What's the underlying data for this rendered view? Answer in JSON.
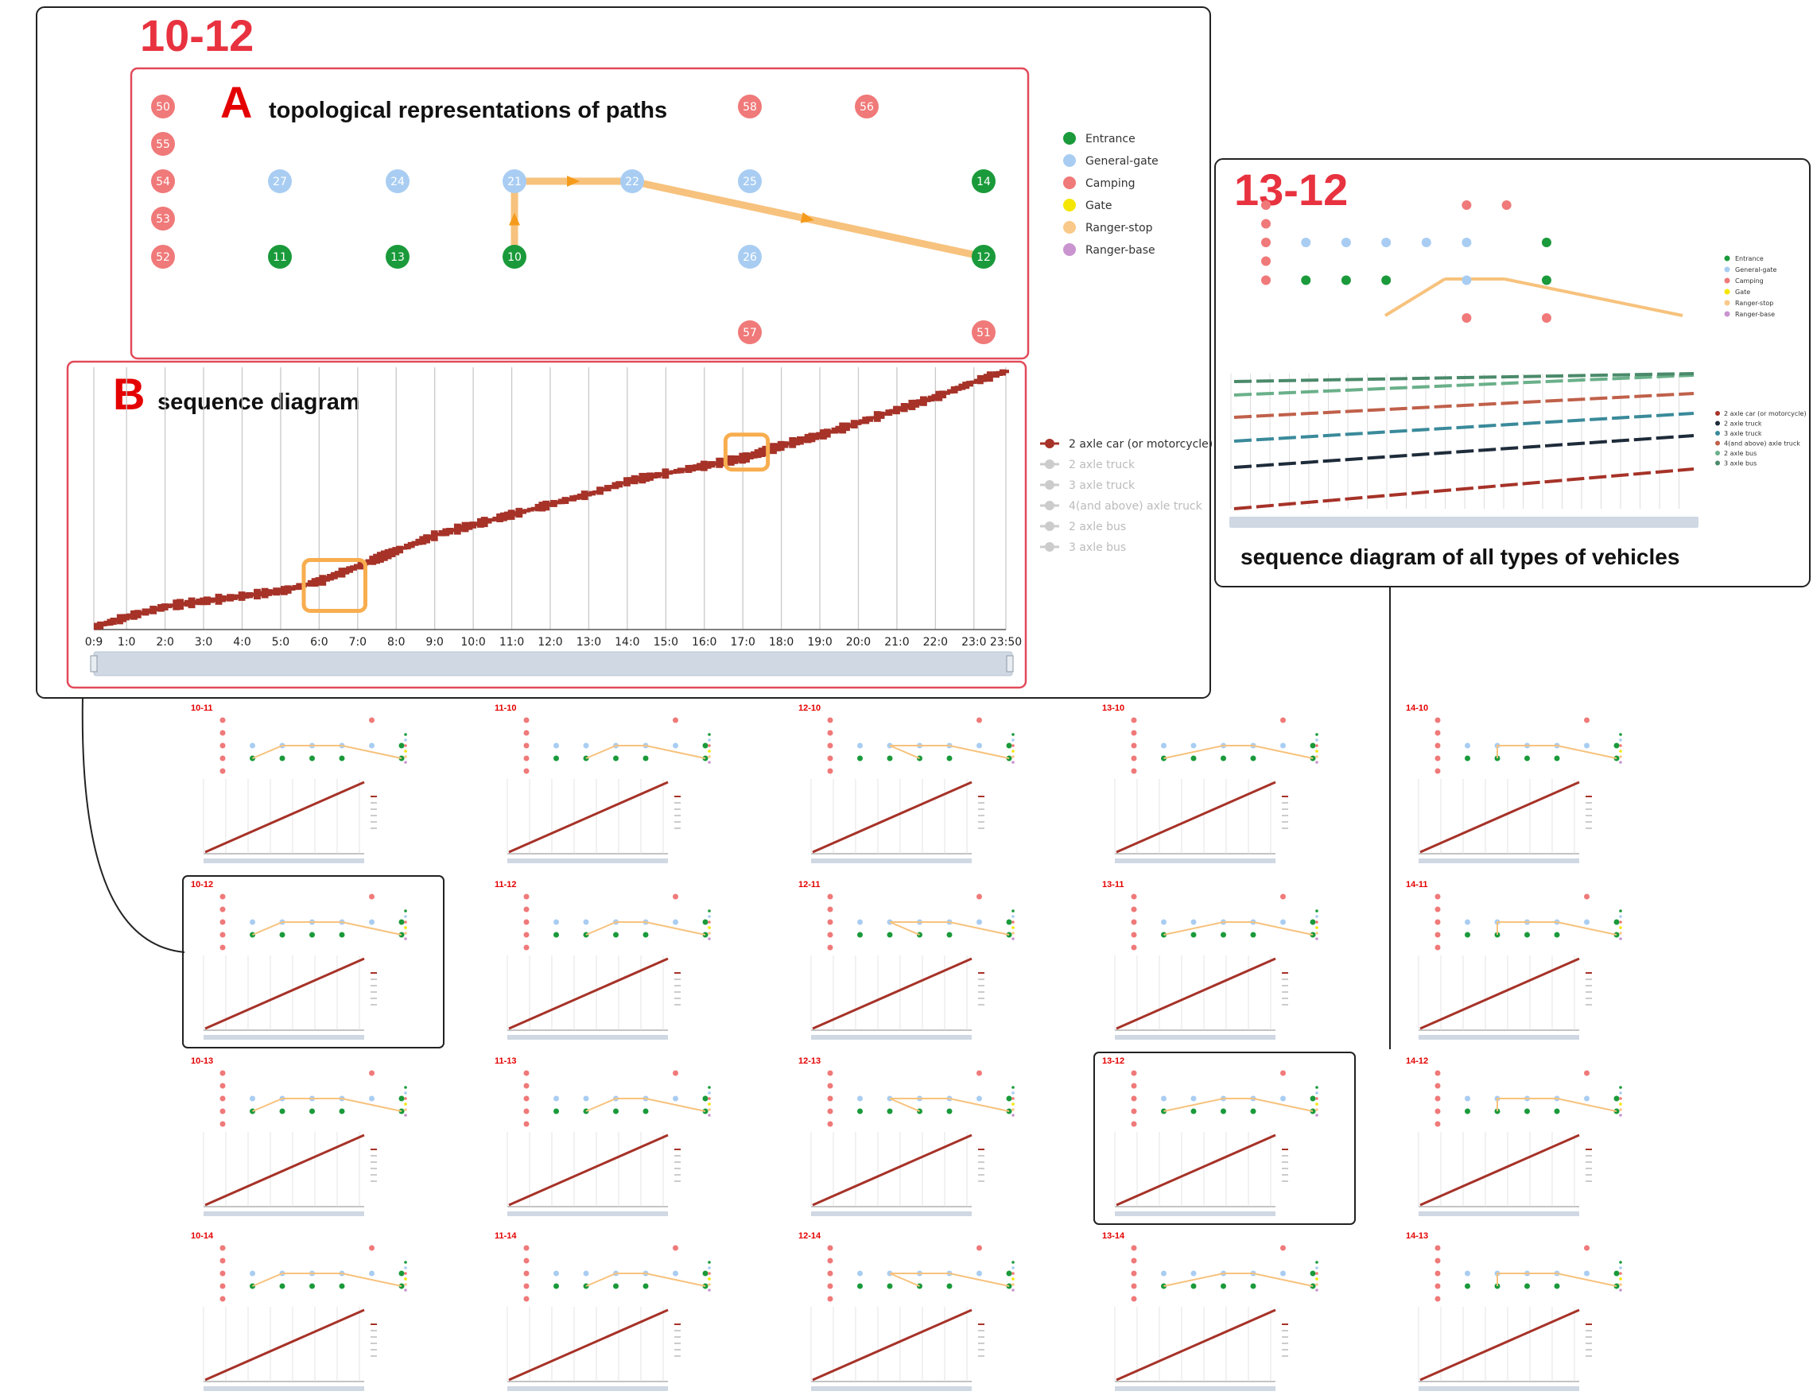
{
  "main_panel": {
    "title": "10-12",
    "section_a": {
      "letter": "A",
      "label": "topological representations of paths"
    },
    "section_b": {
      "letter": "B",
      "label": "sequence diagram"
    }
  },
  "side_panel": {
    "title": "13-12",
    "caption": "sequence diagram of all types of vehicles"
  },
  "colors": {
    "entrance": "#1a9a3a",
    "general_gate": "#a9cdf2",
    "camping": "#f07979",
    "gate": "#f5e600",
    "ranger_stop": "#f9c98a",
    "ranger_base": "#c994cf",
    "path": "#f7c27d",
    "path_arrow": "#f59b1c",
    "sequence": "#a63228",
    "highlight": "#f8ad4f",
    "panel_border": "#e24a5a"
  },
  "node_legend": [
    {
      "label": "Entrance",
      "color": "#1a9a3a"
    },
    {
      "label": "General-gate",
      "color": "#a9cdf2"
    },
    {
      "label": "Camping",
      "color": "#f07979"
    },
    {
      "label": "Gate",
      "color": "#f5e600"
    },
    {
      "label": "Ranger-stop",
      "color": "#f9c98a"
    },
    {
      "label": "Ranger-base",
      "color": "#c994cf"
    }
  ],
  "vehicle_legend": [
    {
      "label": "2 axle car  (or motorcycle)",
      "active": true
    },
    {
      "label": "2 axle truck",
      "active": false
    },
    {
      "label": "3 axle truck",
      "active": false
    },
    {
      "label": "4(and above) axle truck",
      "active": false
    },
    {
      "label": "2 axle bus",
      "active": false
    },
    {
      "label": "3 axle bus",
      "active": false
    }
  ],
  "side_vehicle_legend": [
    {
      "label": "2 axle car  (or motorcycle)",
      "color": "#a63228"
    },
    {
      "label": "2 axle truck",
      "color": "#1e2b3a"
    },
    {
      "label": "3 axle truck",
      "color": "#3a8a9a"
    },
    {
      "label": "4(and above) axle truck",
      "color": "#c0604a"
    },
    {
      "label": "2 axle bus",
      "color": "#6ab08a"
    },
    {
      "label": "3 axle bus",
      "color": "#4a8a6a"
    }
  ],
  "nodes": [
    {
      "id": "50",
      "type": "camping"
    },
    {
      "id": "55",
      "type": "camping"
    },
    {
      "id": "54",
      "type": "camping"
    },
    {
      "id": "53",
      "type": "camping"
    },
    {
      "id": "52",
      "type": "camping"
    },
    {
      "id": "27",
      "type": "general_gate"
    },
    {
      "id": "11",
      "type": "entrance"
    },
    {
      "id": "24",
      "type": "general_gate"
    },
    {
      "id": "13",
      "type": "entrance"
    },
    {
      "id": "21",
      "type": "general_gate"
    },
    {
      "id": "10",
      "type": "entrance"
    },
    {
      "id": "22",
      "type": "general_gate"
    },
    {
      "id": "58",
      "type": "camping"
    },
    {
      "id": "25",
      "type": "general_gate"
    },
    {
      "id": "26",
      "type": "general_gate"
    },
    {
      "id": "57",
      "type": "camping"
    },
    {
      "id": "56",
      "type": "camping"
    },
    {
      "id": "14",
      "type": "entrance"
    },
    {
      "id": "12",
      "type": "entrance"
    },
    {
      "id": "51",
      "type": "camping"
    }
  ],
  "path": [
    "10",
    "21",
    "22",
    "12"
  ],
  "chart_data": {
    "type": "line",
    "x_ticks": [
      "0:9",
      "1:0",
      "2:0",
      "3:0",
      "4:0",
      "5:0",
      "6:0",
      "7:0",
      "8:0",
      "9:0",
      "10:0",
      "11:0",
      "12:0",
      "13:0",
      "14:0",
      "15:0",
      "16:0",
      "17:0",
      "18:0",
      "19:0",
      "20:0",
      "21:0",
      "22:0",
      "23:0",
      "23:50"
    ],
    "series": [
      {
        "name": "2 axle car  (or motorcycle)",
        "x_hours": [
          0.15,
          1,
          2,
          3,
          4,
          5,
          6,
          7,
          8,
          9,
          10,
          11,
          12,
          13,
          14,
          15,
          16,
          17,
          18,
          19,
          20,
          21,
          22,
          23,
          23.83
        ],
        "y": [
          0,
          0.04,
          0.08,
          0.1,
          0.12,
          0.14,
          0.18,
          0.24,
          0.3,
          0.36,
          0.4,
          0.44,
          0.48,
          0.52,
          0.57,
          0.6,
          0.63,
          0.66,
          0.71,
          0.75,
          0.8,
          0.85,
          0.9,
          0.96,
          1.0
        ]
      }
    ],
    "highlights_hours": [
      [
        5.6,
        7.2
      ],
      [
        16.55,
        17.65
      ]
    ]
  },
  "grid": {
    "rows": [
      [
        "10-11",
        "11-10",
        "12-10",
        "13-10",
        "14-10"
      ],
      [
        "10-12",
        "11-12",
        "12-11",
        "13-11",
        "14-11"
      ],
      [
        "10-13",
        "11-13",
        "12-13",
        "13-12",
        "14-12"
      ],
      [
        "10-14",
        "11-14",
        "12-14",
        "13-14",
        "14-13"
      ]
    ],
    "highlighted": [
      "10-12",
      "13-12"
    ]
  }
}
